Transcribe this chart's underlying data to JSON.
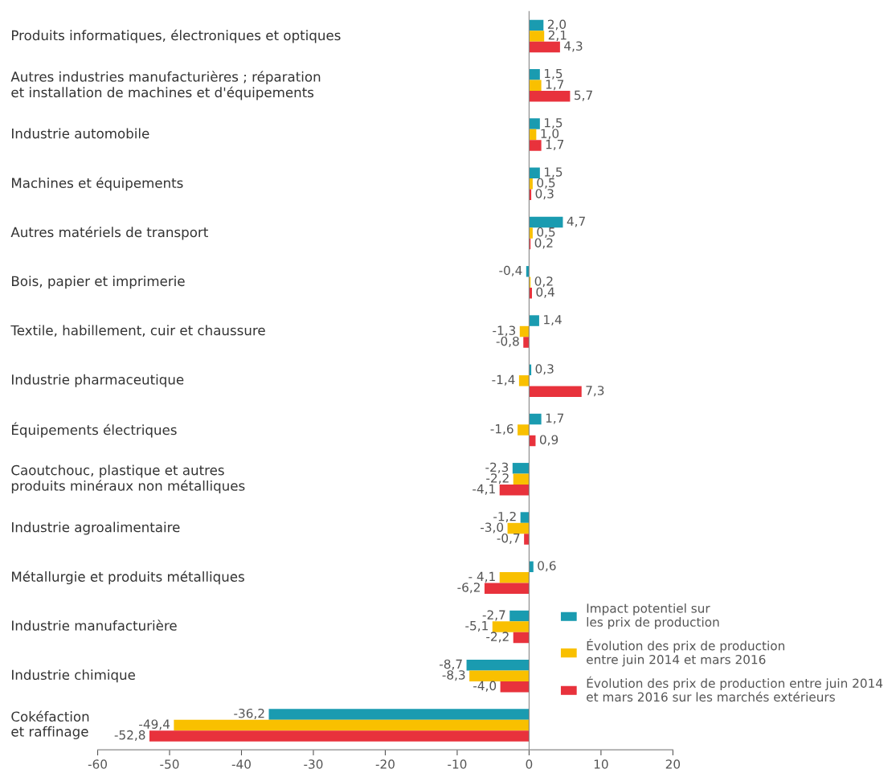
{
  "chart_data": {
    "type": "bar",
    "orientation": "horizontal",
    "categories": [
      "Produits informatiques, électroniques et optiques",
      "Autres industries manufacturières ; réparation\net installation de machines et d'équipements",
      "Industrie automobile",
      "Machines et équipements",
      "Autres matériels de transport",
      "Bois, papier et imprimerie",
      "Textile, habillement, cuir et chaussure",
      "Industrie pharmaceutique",
      "Équipements électriques",
      "Caoutchouc, plastique et autres\nproduits minéraux non métalliques",
      "Industrie agroalimentaire",
      "Métallurgie et produits métalliques",
      "Industrie manufacturière",
      "Industrie chimique",
      "Cokéfaction\net raffinage"
    ],
    "series": [
      {
        "name": "Impact potentiel sur\nles prix de production",
        "color": "#1a9bb0",
        "values": [
          2.0,
          1.5,
          1.5,
          1.5,
          4.7,
          -0.4,
          1.4,
          0.3,
          1.7,
          -2.3,
          -1.2,
          0.6,
          -2.7,
          -8.7,
          -36.2
        ],
        "value_labels": [
          "2,0",
          "1,5",
          "1,5",
          "1,5",
          "4,7",
          "-0,4",
          "1,4",
          "0,3",
          "1,7",
          "-2,3",
          "-1,2",
          "0,6",
          "-2,7",
          "-8,7",
          "-36,2"
        ]
      },
      {
        "name": "Évolution des prix de production\nentre juin 2014 et mars 2016",
        "color": "#f9c000",
        "values": [
          2.1,
          1.7,
          1.0,
          0.5,
          0.5,
          0.2,
          -1.3,
          -1.4,
          -1.6,
          -2.2,
          -3.0,
          -4.1,
          -5.1,
          -8.3,
          -49.4
        ],
        "value_labels": [
          "2,1",
          "1,7",
          "1,0",
          "0,5",
          "0,5",
          "0,2",
          "-1,3",
          "-1,4",
          "-1,6",
          "-2,2",
          "-3,0",
          "- 4,1",
          "-5,1",
          "-8,3",
          "-49,4"
        ]
      },
      {
        "name": "Évolution des prix de production entre juin 2014\net mars 2016 sur les marchés extérieurs",
        "color": "#e8323c",
        "values": [
          4.3,
          5.7,
          1.7,
          0.3,
          0.2,
          0.4,
          -0.8,
          7.3,
          0.9,
          -4.1,
          -0.7,
          -6.2,
          -2.2,
          -4.0,
          -52.8
        ],
        "value_labels": [
          "4,3",
          "5,7",
          "1,7",
          "0,3",
          "0,2",
          "0,4",
          "-0,8",
          "7,3",
          "0,9",
          "-4,1",
          "-0,7",
          "-6,2",
          "-2,2",
          "-4,0",
          "-52,8"
        ]
      }
    ],
    "xlim": [
      -60,
      20
    ],
    "xticks": [
      -60,
      -50,
      -40,
      -30,
      -20,
      -10,
      0,
      10,
      20
    ],
    "legend": "bottom right"
  }
}
